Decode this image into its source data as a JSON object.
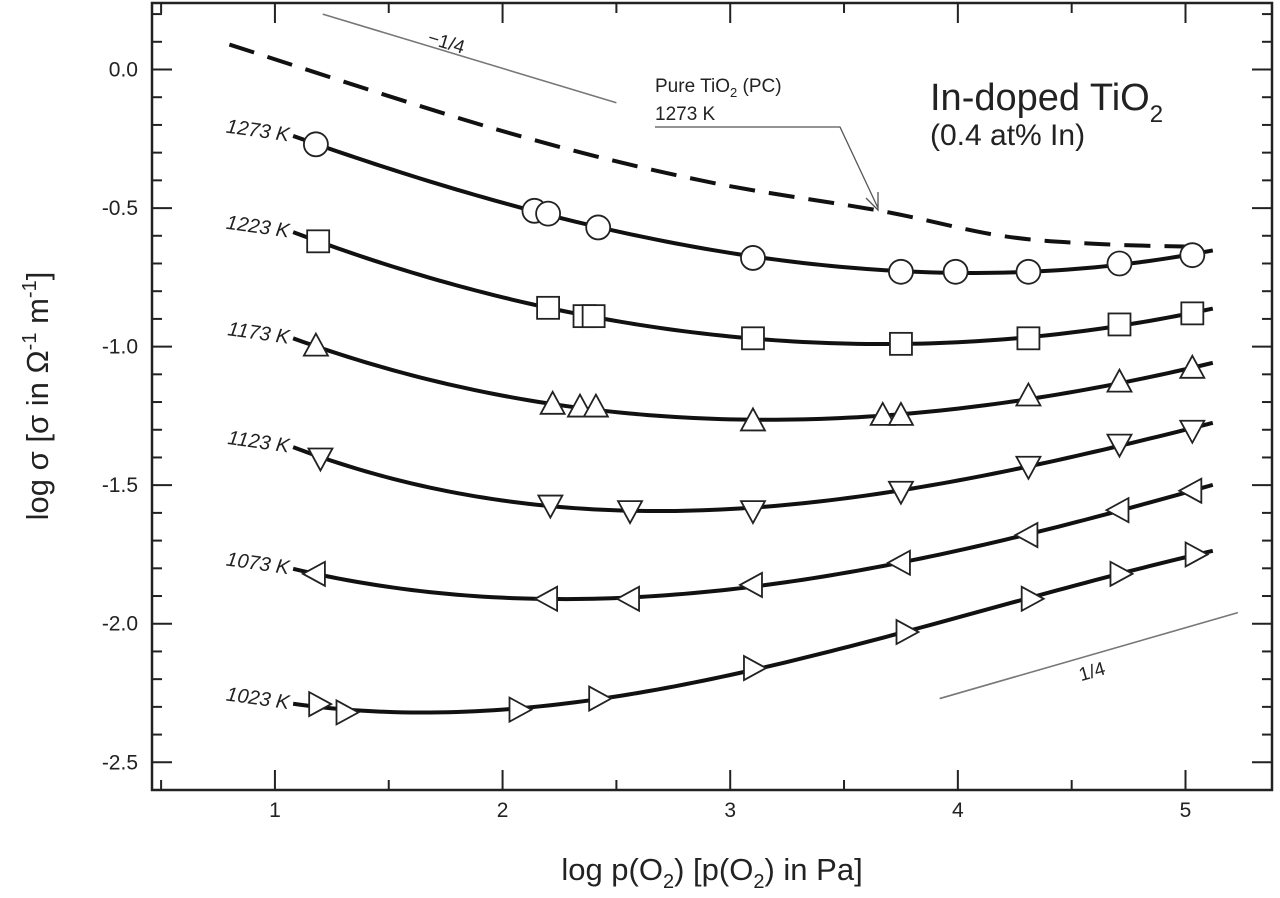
{
  "chart_data": {
    "type": "line",
    "title": "In-doped TiO2",
    "title_main": "In-doped TiO",
    "title_sub": "2",
    "subtitle": "(0.4 at% In)",
    "xlabel": "log p(O2) [p(O2) in Pa]",
    "xlabel_parts": [
      "log p(O",
      "2",
      ") [p(O",
      "2",
      ") in Pa]"
    ],
    "ylabel": "log σ [σ in Ω-1 m-1]",
    "ylabel_parts": [
      "log σ [σ in Ω",
      "-1",
      " m",
      "-1",
      "]"
    ],
    "xlim": [
      0.46,
      5.38
    ],
    "ylim": [
      -2.6,
      0.24
    ],
    "xticks": [
      1,
      2,
      3,
      4,
      5
    ],
    "xtick_labels": [
      "1",
      "2",
      "3",
      "4",
      "5"
    ],
    "yticks": [
      0.0,
      -0.5,
      -1.0,
      -1.5,
      -2.0,
      -2.5
    ],
    "ytick_labels": [
      "0.0",
      "-0.5",
      "-1.0",
      "-1.5",
      "-2.0",
      "-2.5"
    ],
    "grid": false,
    "series": [
      {
        "name": "1273 K",
        "marker": "circle",
        "x": [
          1.18,
          2.14,
          2.2,
          2.42,
          3.1,
          3.75,
          3.99,
          4.31,
          4.71,
          5.03
        ],
        "y": [
          -0.27,
          -0.51,
          -0.52,
          -0.57,
          -0.68,
          -0.73,
          -0.73,
          -0.73,
          -0.7,
          -0.67
        ]
      },
      {
        "name": "1223 K",
        "marker": "square",
        "x": [
          1.19,
          2.2,
          2.36,
          2.4,
          3.1,
          3.75,
          4.31,
          4.71,
          5.03
        ],
        "y": [
          -0.62,
          -0.86,
          -0.89,
          -0.89,
          -0.97,
          -0.99,
          -0.97,
          -0.92,
          -0.88
        ]
      },
      {
        "name": "1173 K",
        "marker": "triangle-up",
        "x": [
          1.18,
          2.22,
          2.34,
          2.41,
          3.1,
          3.67,
          3.75,
          4.31,
          4.71,
          5.03
        ],
        "y": [
          -1.0,
          -1.21,
          -1.22,
          -1.22,
          -1.27,
          -1.25,
          -1.25,
          -1.18,
          -1.13,
          -1.08
        ]
      },
      {
        "name": "1123 K",
        "marker": "triangle-down",
        "x": [
          1.2,
          2.21,
          2.56,
          3.1,
          3.75,
          4.31,
          4.71,
          5.03
        ],
        "y": [
          -1.4,
          -1.57,
          -1.59,
          -1.59,
          -1.52,
          -1.43,
          -1.35,
          -1.3
        ]
      },
      {
        "name": "1073 K",
        "marker": "triangle-left",
        "x": [
          1.18,
          2.2,
          2.56,
          3.1,
          3.75,
          4.31,
          4.71,
          5.03
        ],
        "y": [
          -1.82,
          -1.91,
          -1.91,
          -1.86,
          -1.78,
          -1.68,
          -1.59,
          -1.52
        ]
      },
      {
        "name": "1023 K",
        "marker": "triangle-right",
        "x": [
          1.19,
          1.31,
          2.07,
          2.42,
          3.1,
          3.77,
          4.32,
          4.71,
          5.04
        ],
        "y": [
          -2.29,
          -2.32,
          -2.31,
          -2.27,
          -2.16,
          -2.03,
          -1.91,
          -1.82,
          -1.75
        ]
      }
    ],
    "reference_curve": {
      "name": "Pure TiO2 (PC) 1273 K",
      "label_main": "Pure TiO",
      "label_sub": "2",
      "label_tail": " (PC)",
      "label_temp": "1273 K",
      "style": "dashed",
      "x": [
        0.8,
        1.99,
        2.87,
        3.66,
        4.19,
        4.63,
        5.07
      ],
      "y": [
        0.09,
        -0.22,
        -0.4,
        -0.51,
        -0.6,
        -0.63,
        -0.64
      ],
      "arrow_to": [
        3.66,
        -0.5
      ]
    },
    "slope_guides": [
      {
        "label": "−1/4",
        "x": [
          1.21,
          2.5
        ],
        "y": [
          0.2,
          -0.12
        ]
      },
      {
        "label": "1/4",
        "x": [
          3.92,
          5.23
        ],
        "y": [
          -2.27,
          -1.96
        ]
      }
    ]
  },
  "colors": {
    "line": "#111111",
    "guide": "#777777",
    "marker_fill": "#ffffff"
  }
}
